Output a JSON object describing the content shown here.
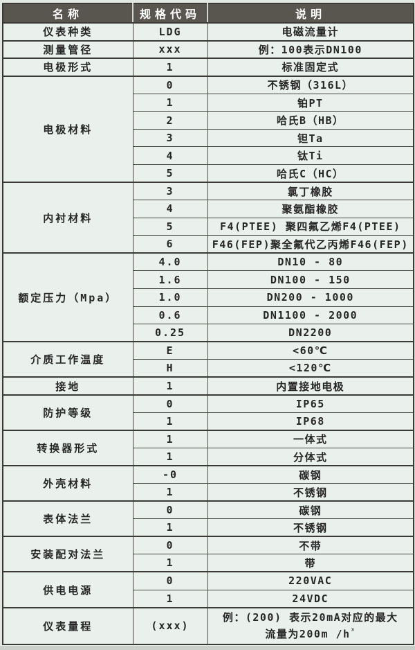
{
  "colors": {
    "header_bg": "#595650",
    "header_text": "#ffffff",
    "body_bg": "#eaf0ec",
    "text": "#262626",
    "grid_line": "#45453f",
    "page_bg": "#cbd0cb"
  },
  "header": {
    "name": "名称",
    "code": "规格代码",
    "desc": "说明"
  },
  "groups": [
    {
      "name": "仪表种类",
      "rows": [
        {
          "code": "LDG",
          "desc": "电磁流量计"
        }
      ]
    },
    {
      "name": "测量管径",
      "rows": [
        {
          "code": "xxx",
          "desc": "例：100表示DN100"
        }
      ]
    },
    {
      "name": "电极形式",
      "rows": [
        {
          "code": "1",
          "desc": "标准固定式"
        }
      ]
    },
    {
      "name": "电极材料",
      "rows": [
        {
          "code": "0",
          "desc": "不锈钢（316L）"
        },
        {
          "code": "1",
          "desc": "铂PT"
        },
        {
          "code": "2",
          "desc": "哈氏B（HB）"
        },
        {
          "code": "3",
          "desc": "钽Ta"
        },
        {
          "code": "4",
          "desc": "钛Ti"
        },
        {
          "code": "5",
          "desc": "哈氏C（HC）"
        }
      ]
    },
    {
      "name": "内衬材料",
      "rows": [
        {
          "code": "3",
          "desc": "氯丁橡胶"
        },
        {
          "code": "4",
          "desc": "聚氨酯橡胶"
        },
        {
          "code": "5",
          "desc": "F4(PTEE) 聚四氟乙烯F4(PTEE)"
        },
        {
          "code": "6",
          "desc": "F46(FEP)聚全氟代乙丙烯F46(FEP)"
        }
      ]
    },
    {
      "name": "额定压力（Mpa）",
      "rows": [
        {
          "code": "4.0",
          "desc": "DN10 - 80"
        },
        {
          "code": "1.6",
          "desc": "DN100 - 150"
        },
        {
          "code": "1.0",
          "desc": "DN200 - 1000"
        },
        {
          "code": "0.6",
          "desc": "DN1100 - 2000"
        },
        {
          "code": "0.25",
          "desc": "DN2200"
        }
      ]
    },
    {
      "name": "介质工作温度",
      "rows": [
        {
          "code": "E",
          "desc": "<60℃"
        },
        {
          "code": "H",
          "desc": "<120℃"
        }
      ]
    },
    {
      "name": "接地",
      "rows": [
        {
          "code": "1",
          "desc": "内置接地电极"
        }
      ]
    },
    {
      "name": "防护等级",
      "rows": [
        {
          "code": "0",
          "desc": "IP65"
        },
        {
          "code": "1",
          "desc": "IP68"
        }
      ]
    },
    {
      "name": "转换器形式",
      "rows": [
        {
          "code": "1",
          "desc": "一体式"
        },
        {
          "code": "1",
          "desc": "分体式"
        }
      ]
    },
    {
      "name": "外壳材料",
      "rows": [
        {
          "code": "-0",
          "desc": "碳钢"
        },
        {
          "code": "1",
          "desc": "不锈钢"
        }
      ]
    },
    {
      "name": "表体法兰",
      "rows": [
        {
          "code": "0",
          "desc": "碳钢"
        },
        {
          "code": "1",
          "desc": "不锈钢"
        }
      ]
    },
    {
      "name": "安装配对法兰",
      "rows": [
        {
          "code": "0",
          "desc": "不带"
        },
        {
          "code": "1",
          "desc": "带"
        }
      ]
    },
    {
      "name": "供电电源",
      "rows": [
        {
          "code": "0",
          "desc": "220VAC"
        },
        {
          "code": "1",
          "desc": "24VDC"
        }
      ]
    },
    {
      "name": "仪表量程",
      "rows": [
        {
          "code": "(xxx)",
          "desc_line1": "例：(200) 表示20mA对应的最大",
          "desc_line2": "流量为200m /h",
          "desc_sup": "³"
        }
      ]
    }
  ]
}
